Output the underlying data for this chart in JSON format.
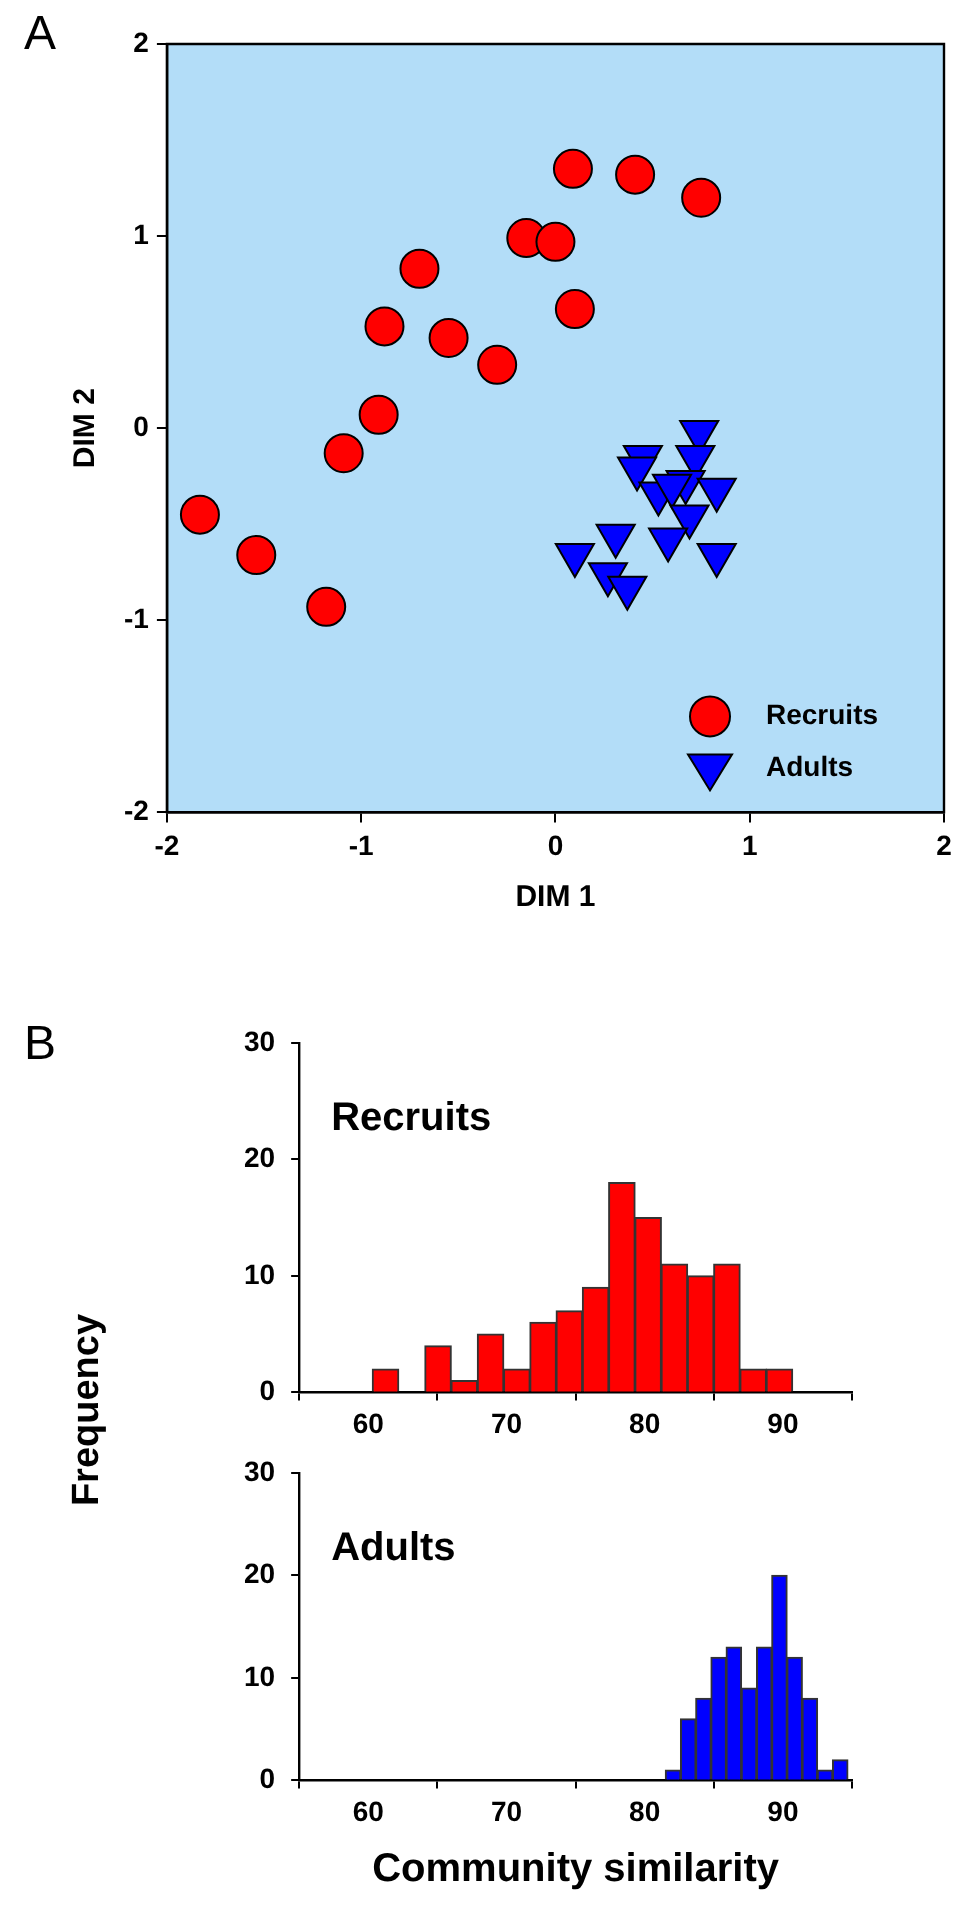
{
  "chart_data": [
    {
      "type": "scatter",
      "xlabel": "DIM 1",
      "ylabel": "DIM 2",
      "annotations": [
        "A"
      ],
      "xlim": [
        -2,
        2
      ],
      "ylim": [
        -2,
        2
      ],
      "xticks": [
        -2,
        -1,
        0,
        1,
        2
      ],
      "yticks": [
        -2,
        -1,
        0,
        1,
        2
      ],
      "grid": false,
      "legend": "bottom right",
      "series": [
        {
          "name": "Recruits",
          "color": "#ff0000",
          "marker": "circle",
          "x": [
            0.09,
            0.41,
            0.75,
            -0.15,
            0.0,
            -0.7,
            0.1,
            -0.88,
            -0.55,
            -0.3,
            -0.91,
            -1.09,
            -1.83,
            -1.54,
            -1.18
          ],
          "values": [
            1.35,
            1.32,
            1.2,
            0.99,
            0.97,
            0.83,
            0.62,
            0.53,
            0.47,
            0.33,
            0.07,
            -0.13,
            -0.45,
            -0.66,
            -0.93
          ]
        },
        {
          "name": "Adults",
          "color": "#0000ff",
          "marker": "triangle",
          "x": [
            0.74,
            0.45,
            0.72,
            0.42,
            0.67,
            0.83,
            0.53,
            0.6,
            0.69,
            0.31,
            0.58,
            0.83,
            0.1,
            0.27,
            0.37
          ],
          "values": [
            -0.02,
            -0.15,
            -0.15,
            -0.21,
            -0.28,
            -0.32,
            -0.34,
            -0.3,
            -0.46,
            -0.56,
            -0.58,
            -0.66,
            -0.66,
            -0.76,
            -0.83
          ]
        }
      ]
    },
    {
      "type": "histogram",
      "title": "Recruits",
      "ylabel": "Frequency",
      "annotations": [
        "B"
      ],
      "color": "#ff0000",
      "xlim": [
        55,
        95
      ],
      "ylim": [
        0,
        30
      ],
      "xticks": [
        60,
        70,
        80,
        90
      ],
      "yticks": [
        0,
        10,
        20,
        30
      ],
      "bins": [
        60.3,
        62.2,
        64.1,
        66.0,
        67.9,
        69.8,
        71.7,
        73.6,
        75.5,
        77.4,
        79.3,
        81.2,
        83.1,
        85.0,
        86.9,
        88.8,
        90.7
      ],
      "values": [
        2,
        0,
        4,
        1,
        5,
        2,
        6,
        7,
        9,
        18,
        15,
        11,
        10,
        11,
        2,
        2
      ]
    },
    {
      "type": "histogram",
      "title": "Adults",
      "xlabel": "Community similarity",
      "color": "#0000ff",
      "xlim": [
        55,
        95
      ],
      "ylim": [
        0,
        30
      ],
      "xticks": [
        60,
        70,
        80,
        90
      ],
      "yticks": [
        0,
        10,
        20,
        30
      ],
      "bins": [
        81.5,
        82.6,
        83.7,
        84.8,
        85.9,
        87.0,
        88.1,
        89.2,
        90.3,
        91.4,
        92.5,
        93.6,
        94.7
      ],
      "values": [
        1,
        6,
        8,
        12,
        13,
        9,
        13,
        20,
        12,
        8,
        1,
        2
      ]
    }
  ]
}
